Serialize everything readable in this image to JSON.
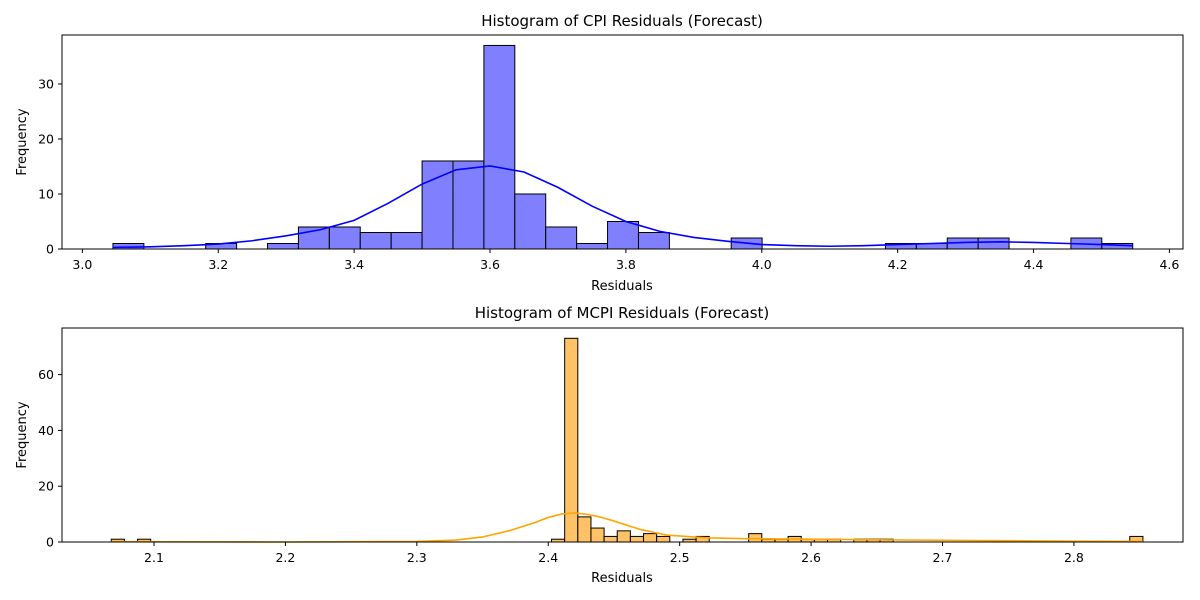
{
  "chart_data": [
    {
      "type": "histogram",
      "title": "Histogram of CPI Residuals (Forecast)",
      "xlabel": "Residuals",
      "ylabel": "Frequency",
      "xlim": [
        2.97,
        4.62
      ],
      "ylim": [
        0,
        38.9
      ],
      "xticks": [
        "3.0",
        "3.2",
        "3.4",
        "3.6",
        "3.8",
        "4.0",
        "4.2",
        "4.4",
        "4.6"
      ],
      "yticks": [
        "0",
        "10",
        "20",
        "30"
      ],
      "bar_color": "#8080ff",
      "kde_color": "#0000ff",
      "bins": [
        {
          "x0": 3.045,
          "x1": 3.0905,
          "count": 1
        },
        {
          "x0": 3.0905,
          "x1": 3.136,
          "count": 0
        },
        {
          "x0": 3.136,
          "x1": 3.1815,
          "count": 0
        },
        {
          "x0": 3.1815,
          "x1": 3.227,
          "count": 1
        },
        {
          "x0": 3.227,
          "x1": 3.2725,
          "count": 0
        },
        {
          "x0": 3.2725,
          "x1": 3.318,
          "count": 1
        },
        {
          "x0": 3.318,
          "x1": 3.3635,
          "count": 4
        },
        {
          "x0": 3.3635,
          "x1": 3.409,
          "count": 4
        },
        {
          "x0": 3.409,
          "x1": 3.4545,
          "count": 3
        },
        {
          "x0": 3.4545,
          "x1": 3.5,
          "count": 3
        },
        {
          "x0": 3.5,
          "x1": 3.5455,
          "count": 16
        },
        {
          "x0": 3.5455,
          "x1": 3.591,
          "count": 16
        },
        {
          "x0": 3.591,
          "x1": 3.6365,
          "count": 37
        },
        {
          "x0": 3.6365,
          "x1": 3.682,
          "count": 10
        },
        {
          "x0": 3.682,
          "x1": 3.7275,
          "count": 4
        },
        {
          "x0": 3.7275,
          "x1": 3.773,
          "count": 1
        },
        {
          "x0": 3.773,
          "x1": 3.8185,
          "count": 5
        },
        {
          "x0": 3.8185,
          "x1": 3.864,
          "count": 3
        },
        {
          "x0": 3.955,
          "x1": 4.0005,
          "count": 2
        },
        {
          "x0": 4.182,
          "x1": 4.2275,
          "count": 1
        },
        {
          "x0": 4.2275,
          "x1": 4.273,
          "count": 1
        },
        {
          "x0": 4.273,
          "x1": 4.3185,
          "count": 2
        },
        {
          "x0": 4.3185,
          "x1": 4.364,
          "count": 2
        },
        {
          "x0": 4.455,
          "x1": 4.5005,
          "count": 2
        },
        {
          "x0": 4.5005,
          "x1": 4.546,
          "count": 1
        }
      ],
      "kde": {
        "x": [
          3.045,
          3.1,
          3.15,
          3.2,
          3.25,
          3.3,
          3.35,
          3.4,
          3.45,
          3.5,
          3.55,
          3.6,
          3.65,
          3.7,
          3.75,
          3.8,
          3.85,
          3.9,
          3.95,
          4.0,
          4.05,
          4.1,
          4.15,
          4.2,
          4.25,
          4.3,
          4.35,
          4.4,
          4.45,
          4.5,
          4.546
        ],
        "y": [
          0.3,
          0.4,
          0.6,
          0.9,
          1.5,
          2.4,
          3.5,
          5.2,
          8.3,
          11.8,
          14.4,
          15.1,
          14.0,
          11.2,
          7.8,
          5.0,
          3.2,
          2.1,
          1.4,
          0.8,
          0.6,
          0.5,
          0.6,
          0.8,
          1.0,
          1.2,
          1.3,
          1.2,
          1.0,
          0.8,
          0.6
        ]
      }
    },
    {
      "type": "histogram",
      "title": "Histogram of MCPI Residuals (Forecast)",
      "xlabel": "Residuals",
      "ylabel": "Frequency",
      "xlim": [
        2.03,
        2.883
      ],
      "ylim": [
        0,
        76.7
      ],
      "xticks": [
        "2.1",
        "2.2",
        "2.3",
        "2.4",
        "2.5",
        "2.6",
        "2.7",
        "2.8"
      ],
      "yticks": [
        "0",
        "20",
        "40",
        "60"
      ],
      "bar_color": "#ffc266",
      "kde_color": "#ffa500",
      "bins": [
        {
          "x0": 2.0675,
          "x1": 2.0775,
          "count": 1
        },
        {
          "x0": 2.0875,
          "x1": 2.0975,
          "count": 1
        },
        {
          "x0": 2.4025,
          "x1": 2.4125,
          "count": 1
        },
        {
          "x0": 2.4125,
          "x1": 2.4225,
          "count": 73
        },
        {
          "x0": 2.4225,
          "x1": 2.4325,
          "count": 9
        },
        {
          "x0": 2.4325,
          "x1": 2.4425,
          "count": 5
        },
        {
          "x0": 2.4425,
          "x1": 2.4525,
          "count": 2
        },
        {
          "x0": 2.4525,
          "x1": 2.4625,
          "count": 4
        },
        {
          "x0": 2.4625,
          "x1": 2.4725,
          "count": 2
        },
        {
          "x0": 2.4725,
          "x1": 2.4825,
          "count": 3
        },
        {
          "x0": 2.4825,
          "x1": 2.4925,
          "count": 2
        },
        {
          "x0": 2.4925,
          "x1": 2.5025,
          "count": 0
        },
        {
          "x0": 2.5025,
          "x1": 2.5125,
          "count": 1
        },
        {
          "x0": 2.5125,
          "x1": 2.5225,
          "count": 2
        },
        {
          "x0": 2.5425,
          "x1": 2.5525,
          "count": 0
        },
        {
          "x0": 2.5525,
          "x1": 2.5625,
          "count": 3
        },
        {
          "x0": 2.5625,
          "x1": 2.5725,
          "count": 1
        },
        {
          "x0": 2.5725,
          "x1": 2.5825,
          "count": 1
        },
        {
          "x0": 2.5825,
          "x1": 2.5925,
          "count": 2
        },
        {
          "x0": 2.5925,
          "x1": 2.6025,
          "count": 1
        },
        {
          "x0": 2.6025,
          "x1": 2.6125,
          "count": 1
        },
        {
          "x0": 2.6125,
          "x1": 2.6225,
          "count": 1
        },
        {
          "x0": 2.6325,
          "x1": 2.6425,
          "count": 1
        },
        {
          "x0": 2.6425,
          "x1": 2.6525,
          "count": 1
        },
        {
          "x0": 2.6525,
          "x1": 2.6625,
          "count": 1
        },
        {
          "x0": 2.8425,
          "x1": 2.8525,
          "count": 2
        }
      ],
      "kde": {
        "x": [
          2.0675,
          2.2,
          2.3,
          2.33,
          2.35,
          2.37,
          2.39,
          2.4,
          2.41,
          2.42,
          2.43,
          2.44,
          2.45,
          2.47,
          2.49,
          2.52,
          2.55,
          2.6,
          2.7,
          2.8,
          2.8525
        ],
        "y": [
          0.1,
          0.0,
          0.2,
          0.7,
          1.8,
          4.0,
          7.0,
          8.8,
          10.0,
          10.4,
          9.9,
          8.9,
          7.5,
          4.5,
          2.5,
          1.5,
          1.2,
          1.0,
          0.6,
          0.3,
          0.2
        ]
      }
    }
  ]
}
